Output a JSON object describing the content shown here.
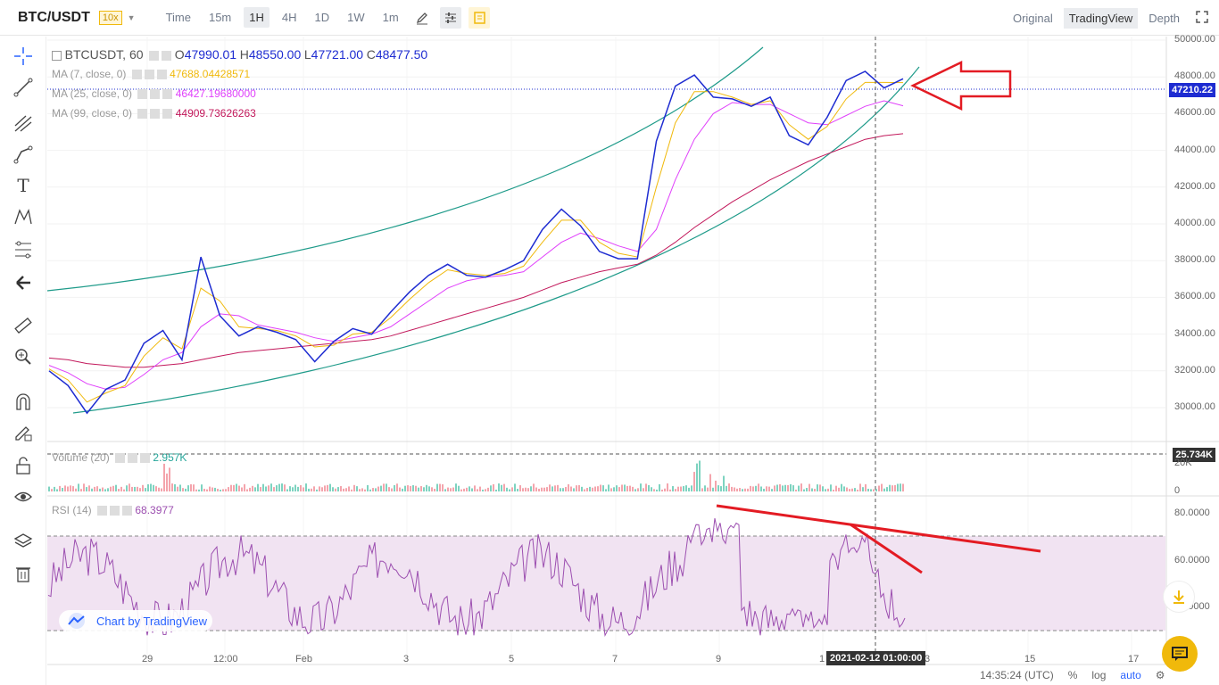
{
  "topbar": {
    "pair": "BTC/USDT",
    "leverage": "10x",
    "intervals": [
      "Time",
      "15m",
      "1H",
      "4H",
      "1D",
      "1W",
      "1m"
    ],
    "active_interval": "1H",
    "views": [
      "Original",
      "TradingView",
      "Depth"
    ],
    "active_view": "TradingView"
  },
  "legend": {
    "symbol": "BTCUSDT, 60",
    "o_label": "O",
    "o": "47990.01",
    "h_label": "H",
    "h": "48550.00",
    "l_label": "L",
    "l": "47721.00",
    "c_label": "C",
    "c": "48477.50",
    "ma7_label": "MA (7, close, 0)",
    "ma7": "47688.04428571",
    "ma25_label": "MA (25, close, 0)",
    "ma25": "46427.19680000",
    "ma99_label": "MA (99, close, 0)",
    "ma99": "44909.73626263",
    "volume_label": "Volume (20)",
    "volume": "2.957K",
    "rsi_label": "RSI (14)",
    "rsi": "68.3977"
  },
  "price_axis": [
    "50000.00",
    "48000.00",
    "46000.00",
    "44000.00",
    "42000.00",
    "40000.00",
    "38000.00",
    "36000.00",
    "34000.00",
    "32000.00",
    "30000.00"
  ],
  "current_price": "47210.22",
  "volume_axis": [
    "25.734K",
    "20K",
    "0"
  ],
  "rsi_axis": [
    "80.0000",
    "60.0000",
    "40.0000"
  ],
  "time_axis": [
    "29",
    "12:00",
    "Feb",
    "3",
    "5",
    "7",
    "9",
    "1",
    "3",
    "15",
    "17"
  ],
  "crosshair_time": "2021-02-12 01:00:00",
  "attribution": "Chart by TradingView",
  "footer": {
    "clock": "14:35:24 (UTC)",
    "percent": "%",
    "log": "log",
    "auto": "auto"
  },
  "colors": {
    "price_line": "#1e2cd1",
    "ma7": "#f0b90b",
    "ma25": "#e040fb",
    "ma99": "#c2185b",
    "channel": "#1f9b8a",
    "annotation": "#e31b23",
    "rsi_band": "#f1e3f2"
  },
  "chart_data": {
    "type": "line",
    "title": "BTCUSDT, 60",
    "ylim": [
      29000,
      50000
    ],
    "series": [
      {
        "name": "BTCUSDT",
        "values": [
          32000,
          31200,
          29700,
          31000,
          31500,
          33500,
          34200,
          32600,
          38200,
          35000,
          33900,
          34400,
          34100,
          33700,
          32500,
          33600,
          34300,
          34000,
          35200,
          36300,
          37200,
          37800,
          37200,
          37100,
          37500,
          38000,
          39700,
          40800,
          39900,
          38500,
          38100,
          38100,
          44500,
          47500,
          48100,
          46900,
          46800,
          46400,
          46900,
          44800,
          44300,
          45800,
          47800,
          48300,
          47400,
          47900
        ]
      },
      {
        "name": "MA (7, close, 0)",
        "values": [
          32100,
          31500,
          30300,
          30800,
          31200,
          32800,
          33800,
          33200,
          36500,
          35800,
          34400,
          34300,
          34200,
          33900,
          33300,
          33400,
          34000,
          34100,
          34900,
          35900,
          36800,
          37500,
          37300,
          37200,
          37300,
          37700,
          39000,
          40200,
          40200,
          39000,
          38400,
          38200,
          42000,
          45500,
          47200,
          47200,
          46900,
          46500,
          46700,
          45400,
          44600,
          45300,
          46800,
          47700,
          47700,
          47688
        ]
      },
      {
        "name": "MA (25, close, 0)",
        "values": [
          32300,
          31900,
          31300,
          31000,
          31100,
          31800,
          32600,
          33000,
          34400,
          35100,
          35000,
          34500,
          34300,
          34100,
          33800,
          33600,
          33800,
          34000,
          34400,
          35100,
          35800,
          36500,
          36900,
          37100,
          37200,
          37400,
          38200,
          39000,
          39500,
          39200,
          38800,
          38500,
          39700,
          42400,
          44600,
          46000,
          46600,
          46500,
          46500,
          46000,
          45500,
          45400,
          45900,
          46400,
          46700,
          46427
        ]
      },
      {
        "name": "MA (99, close, 0)",
        "values": [
          32700,
          32600,
          32400,
          32300,
          32200,
          32200,
          32300,
          32400,
          32600,
          32800,
          33000,
          33100,
          33200,
          33300,
          33400,
          33500,
          33600,
          33700,
          33900,
          34200,
          34500,
          34800,
          35100,
          35400,
          35700,
          36000,
          36400,
          36800,
          37100,
          37400,
          37600,
          37800,
          38300,
          39000,
          39800,
          40500,
          41200,
          41800,
          42400,
          42900,
          43400,
          43800,
          44200,
          44600,
          44800,
          44909
        ]
      }
    ],
    "ticks_y": [
      "50000.00",
      "48000.00",
      "46000.00",
      "44000.00",
      "42000.00",
      "40000.00",
      "38000.00",
      "36000.00",
      "34000.00",
      "32000.00",
      "30000.00"
    ]
  }
}
